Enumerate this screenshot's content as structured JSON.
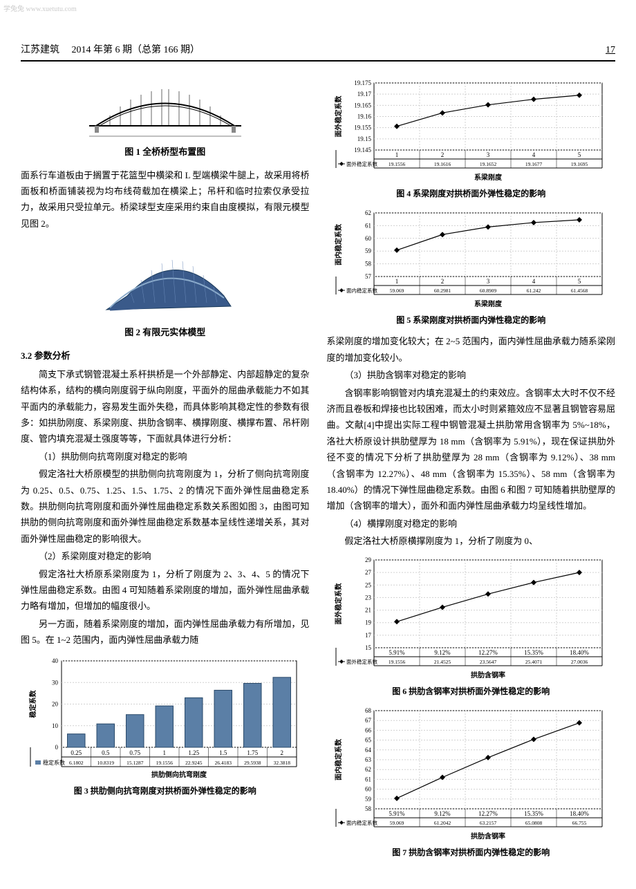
{
  "watermark": "学兔兔 www.xuetutu.com",
  "header": {
    "journal": "江苏建筑",
    "issue": "2014 年第 6 期（总第 166 期）",
    "page": "17"
  },
  "fig1": {
    "caption": "图 1  全桥桥型布置图"
  },
  "fig2": {
    "caption": "图 2  有限元实体模型"
  },
  "fig3": {
    "caption": "图 3  拱肋侧向抗弯刚度对拱桥面外弹性稳定的影响",
    "type": "bar",
    "xlabel": "拱肋侧向抗弯刚度",
    "ylabel": "稳定系数",
    "categories": [
      "0.25",
      "0.5",
      "0.75",
      "1",
      "1.25",
      "1.5",
      "1.75",
      "2"
    ],
    "values": [
      6.1802,
      10.8319,
      15.1287,
      19.1556,
      22.9245,
      26.4183,
      29.5938,
      32.3818
    ],
    "row_label": "稳定系数",
    "ylim": [
      0,
      40
    ],
    "ytick_step": 10,
    "bar_color": "#5b7fa6",
    "grid_color": "#d0d0d0",
    "axis_fontsize": 9,
    "label_fontsize": 10
  },
  "fig4": {
    "caption": "图 4  系梁刚度对拱桥面外弹性稳定的影响",
    "type": "line",
    "xlabel": "系梁刚度",
    "ylabel": "面外稳定系数",
    "categories": [
      "1",
      "2",
      "3",
      "4",
      "5"
    ],
    "values": [
      19.1556,
      19.1616,
      19.1652,
      19.1677,
      19.1695
    ],
    "row_label": "面外稳定系数",
    "ylim": [
      19.145,
      19.175
    ],
    "yticks": [
      19.145,
      19.15,
      19.155,
      19.16,
      19.165,
      19.17,
      19.175
    ],
    "line_color": "#000000",
    "marker": "diamond",
    "grid_color": "#d0d0d0",
    "axis_fontsize": 9,
    "label_fontsize": 10
  },
  "fig5": {
    "caption": "图 5  系梁刚度对拱桥面内弹性稳定的影响",
    "type": "line",
    "xlabel": "系梁刚度",
    "ylabel": "面内稳定系数",
    "categories": [
      "1",
      "2",
      "3",
      "4",
      "5"
    ],
    "values": [
      59.069,
      60.2981,
      60.8909,
      61.242,
      61.4568
    ],
    "row_label": "面内稳定系数",
    "ylim": [
      57.0,
      62.0
    ],
    "yticks": [
      57.0,
      58.0,
      59.0,
      60.0,
      61.0,
      62.0
    ],
    "line_color": "#000000",
    "marker": "diamond",
    "grid_color": "#d0d0d0",
    "axis_fontsize": 9,
    "label_fontsize": 10
  },
  "fig6": {
    "caption": "图 6  拱肋含钢率对拱桥面外弹性稳定的影响",
    "type": "line",
    "xlabel": "拱肋含钢率",
    "ylabel": "面外稳定系数",
    "categories": [
      "5.91%",
      "9.12%",
      "12.27%",
      "15.35%",
      "18.40%"
    ],
    "values": [
      19.1556,
      21.4525,
      23.5647,
      25.4071,
      27.0036
    ],
    "row_label": "面外稳定系数",
    "ylim": [
      15,
      29
    ],
    "yticks": [
      15,
      17,
      19,
      21,
      23,
      25,
      27,
      29
    ],
    "line_color": "#000000",
    "marker": "diamond",
    "grid_color": "#d0d0d0",
    "axis_fontsize": 9,
    "label_fontsize": 10
  },
  "fig7": {
    "caption": "图 7  拱肋含钢率对拱桥面内弹性稳定的影响",
    "type": "line",
    "xlabel": "拱肋含钢率",
    "ylabel": "面内稳定系数",
    "categories": [
      "5.91%",
      "9.12%",
      "12.27%",
      "15.35%",
      "18.40%"
    ],
    "values": [
      59.069,
      61.2042,
      63.2157,
      65.0808,
      66.755
    ],
    "row_label": "面内稳定系数",
    "ylim": [
      58,
      68
    ],
    "yticks": [
      58,
      59,
      60,
      61,
      62,
      63,
      64,
      65,
      66,
      67,
      68
    ],
    "line_color": "#000000",
    "marker": "diamond",
    "grid_color": "#d0d0d0",
    "axis_fontsize": 9,
    "label_fontsize": 10
  },
  "text": {
    "col1_p1": "面系行车道板由于搁置于花篮型中横梁和 L 型端横梁牛腿上，故采用将桥面板和桥面铺装视为均布线荷载加在横梁上；吊杆和临时拉索仅承受拉力，故采用只受拉单元。桥梁球型支座采用约束自由度模拟，有限元模型见图 2。",
    "section32": "3.2  参数分析",
    "col1_p2": "简支下承式钢管混凝土系杆拱桥是一个外部静定、内部超静定的复杂结构体系，结构的横向刚度弱于纵向刚度，平面外的屈曲承载能力不如其平面内的承载能力，容易发生面外失稳，而具体影响其稳定性的参数有很多：如拱肋刚度、系梁刚度、拱肋含钢率、横撑刚度、横撑布置、吊杆刚度、管内填充混凝土强度等等，下面就具体进行分析：",
    "col1_h1": "（1）拱肋侧向抗弯刚度对稳定的影响",
    "col1_p3": "假定洛社大桥原模型的拱肋侧向抗弯刚度为 1，分析了侧向抗弯刚度为 0.25、0.5、0.75、1.25、1.5、1.75、2 的情况下面外弹性屈曲稳定系数。拱肋侧向抗弯刚度和面外弹性屈曲稳定系数关系图如图 3，由图可知拱肋的侧向抗弯刚度和面外弹性屈曲稳定系数基本呈线性递增关系，其对面外弹性屈曲稳定的影响很大。",
    "col1_h2": "（2）系梁刚度对稳定的影响",
    "col1_p4": "假定洛社大桥原系梁刚度为 1，分析了刚度为 2、3、4、5 的情况下弹性屈曲稳定系数。由图 4 可知随着系梁刚度的增加，面外弹性屈曲承载力略有增加，但增加的幅度很小。",
    "col1_p5": "另一方面，随着系梁刚度的增加，面内弹性屈曲承载力有所增加，见图 5。在 1~2 范围内，面内弹性屈曲承载力随",
    "col2_p1": "系梁刚度的增加变化较大；在 2~5 范围内，面内弹性屈曲承载力随系梁刚度的增加变化较小。",
    "col2_h3": "（3）拱肋含钢率对稳定的影响",
    "col2_p2": "含钢率影响钢管对内填充混凝土的约束效应。含钢率太大时不仅不经济而且卷板和焊接也比较困难，而太小时则紧箍效应不显著且钢管容易屈曲。文献[4]中提出实际工程中钢管混凝土拱肋常用含钢率为 5%~18%，洛社大桥原设计拱肋壁厚为 18 mm（含钢率为 5.91%），现在保证拱肋外径不变的情况下分析了拱肋壁厚为 28 mm（含钢率为 9.12%）、38 mm（含钢率为 12.27%）、48 mm（含钢率为 15.35%）、58 mm（含钢率为 18.40%）的情况下弹性屈曲稳定系数。由图 6 和图 7 可知随着拱肋壁厚的增加（含钢率的增大），面外和面内弹性屈曲承载力均呈线性增加。",
    "col2_h4": "（4）横撑刚度对稳定的影响",
    "col2_p3": "假定洛社大桥原横撑刚度为 1，分析了刚度为 0、"
  }
}
